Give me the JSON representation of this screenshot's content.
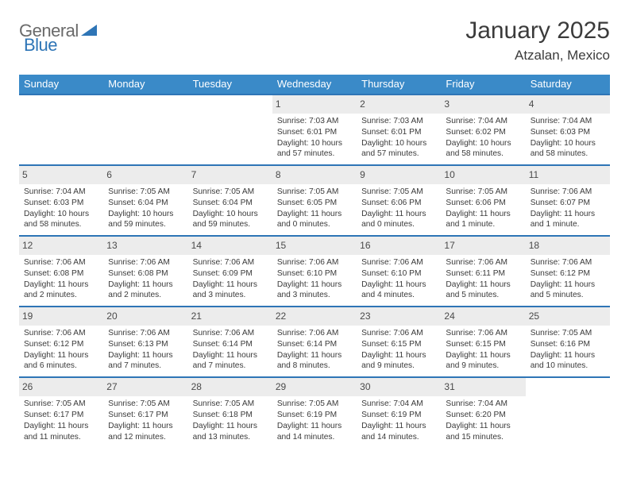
{
  "logo": {
    "word1": "General",
    "word2": "Blue"
  },
  "title": "January 2025",
  "location": "Atzalan, Mexico",
  "colors": {
    "header_bg": "#3a8ac8",
    "border": "#2e75b6",
    "daynum_bg": "#ececec",
    "text": "#3a3a3a",
    "logo_gray": "#6a6a6a",
    "logo_blue": "#2e75b6"
  },
  "dow": [
    "Sunday",
    "Monday",
    "Tuesday",
    "Wednesday",
    "Thursday",
    "Friday",
    "Saturday"
  ],
  "weeks": [
    [
      {
        "n": "",
        "sr": "",
        "ss": "",
        "dl": ""
      },
      {
        "n": "",
        "sr": "",
        "ss": "",
        "dl": ""
      },
      {
        "n": "",
        "sr": "",
        "ss": "",
        "dl": ""
      },
      {
        "n": "1",
        "sr": "7:03 AM",
        "ss": "6:01 PM",
        "dl": "10 hours and 57 minutes."
      },
      {
        "n": "2",
        "sr": "7:03 AM",
        "ss": "6:01 PM",
        "dl": "10 hours and 57 minutes."
      },
      {
        "n": "3",
        "sr": "7:04 AM",
        "ss": "6:02 PM",
        "dl": "10 hours and 58 minutes."
      },
      {
        "n": "4",
        "sr": "7:04 AM",
        "ss": "6:03 PM",
        "dl": "10 hours and 58 minutes."
      }
    ],
    [
      {
        "n": "5",
        "sr": "7:04 AM",
        "ss": "6:03 PM",
        "dl": "10 hours and 58 minutes."
      },
      {
        "n": "6",
        "sr": "7:05 AM",
        "ss": "6:04 PM",
        "dl": "10 hours and 59 minutes."
      },
      {
        "n": "7",
        "sr": "7:05 AM",
        "ss": "6:04 PM",
        "dl": "10 hours and 59 minutes."
      },
      {
        "n": "8",
        "sr": "7:05 AM",
        "ss": "6:05 PM",
        "dl": "11 hours and 0 minutes."
      },
      {
        "n": "9",
        "sr": "7:05 AM",
        "ss": "6:06 PM",
        "dl": "11 hours and 0 minutes."
      },
      {
        "n": "10",
        "sr": "7:05 AM",
        "ss": "6:06 PM",
        "dl": "11 hours and 1 minute."
      },
      {
        "n": "11",
        "sr": "7:06 AM",
        "ss": "6:07 PM",
        "dl": "11 hours and 1 minute."
      }
    ],
    [
      {
        "n": "12",
        "sr": "7:06 AM",
        "ss": "6:08 PM",
        "dl": "11 hours and 2 minutes."
      },
      {
        "n": "13",
        "sr": "7:06 AM",
        "ss": "6:08 PM",
        "dl": "11 hours and 2 minutes."
      },
      {
        "n": "14",
        "sr": "7:06 AM",
        "ss": "6:09 PM",
        "dl": "11 hours and 3 minutes."
      },
      {
        "n": "15",
        "sr": "7:06 AM",
        "ss": "6:10 PM",
        "dl": "11 hours and 3 minutes."
      },
      {
        "n": "16",
        "sr": "7:06 AM",
        "ss": "6:10 PM",
        "dl": "11 hours and 4 minutes."
      },
      {
        "n": "17",
        "sr": "7:06 AM",
        "ss": "6:11 PM",
        "dl": "11 hours and 5 minutes."
      },
      {
        "n": "18",
        "sr": "7:06 AM",
        "ss": "6:12 PM",
        "dl": "11 hours and 5 minutes."
      }
    ],
    [
      {
        "n": "19",
        "sr": "7:06 AM",
        "ss": "6:12 PM",
        "dl": "11 hours and 6 minutes."
      },
      {
        "n": "20",
        "sr": "7:06 AM",
        "ss": "6:13 PM",
        "dl": "11 hours and 7 minutes."
      },
      {
        "n": "21",
        "sr": "7:06 AM",
        "ss": "6:14 PM",
        "dl": "11 hours and 7 minutes."
      },
      {
        "n": "22",
        "sr": "7:06 AM",
        "ss": "6:14 PM",
        "dl": "11 hours and 8 minutes."
      },
      {
        "n": "23",
        "sr": "7:06 AM",
        "ss": "6:15 PM",
        "dl": "11 hours and 9 minutes."
      },
      {
        "n": "24",
        "sr": "7:06 AM",
        "ss": "6:15 PM",
        "dl": "11 hours and 9 minutes."
      },
      {
        "n": "25",
        "sr": "7:05 AM",
        "ss": "6:16 PM",
        "dl": "11 hours and 10 minutes."
      }
    ],
    [
      {
        "n": "26",
        "sr": "7:05 AM",
        "ss": "6:17 PM",
        "dl": "11 hours and 11 minutes."
      },
      {
        "n": "27",
        "sr": "7:05 AM",
        "ss": "6:17 PM",
        "dl": "11 hours and 12 minutes."
      },
      {
        "n": "28",
        "sr": "7:05 AM",
        "ss": "6:18 PM",
        "dl": "11 hours and 13 minutes."
      },
      {
        "n": "29",
        "sr": "7:05 AM",
        "ss": "6:19 PM",
        "dl": "11 hours and 14 minutes."
      },
      {
        "n": "30",
        "sr": "7:04 AM",
        "ss": "6:19 PM",
        "dl": "11 hours and 14 minutes."
      },
      {
        "n": "31",
        "sr": "7:04 AM",
        "ss": "6:20 PM",
        "dl": "11 hours and 15 minutes."
      },
      {
        "n": "",
        "sr": "",
        "ss": "",
        "dl": ""
      }
    ]
  ],
  "labels": {
    "sunrise": "Sunrise: ",
    "sunset": "Sunset: ",
    "daylight": "Daylight: "
  }
}
